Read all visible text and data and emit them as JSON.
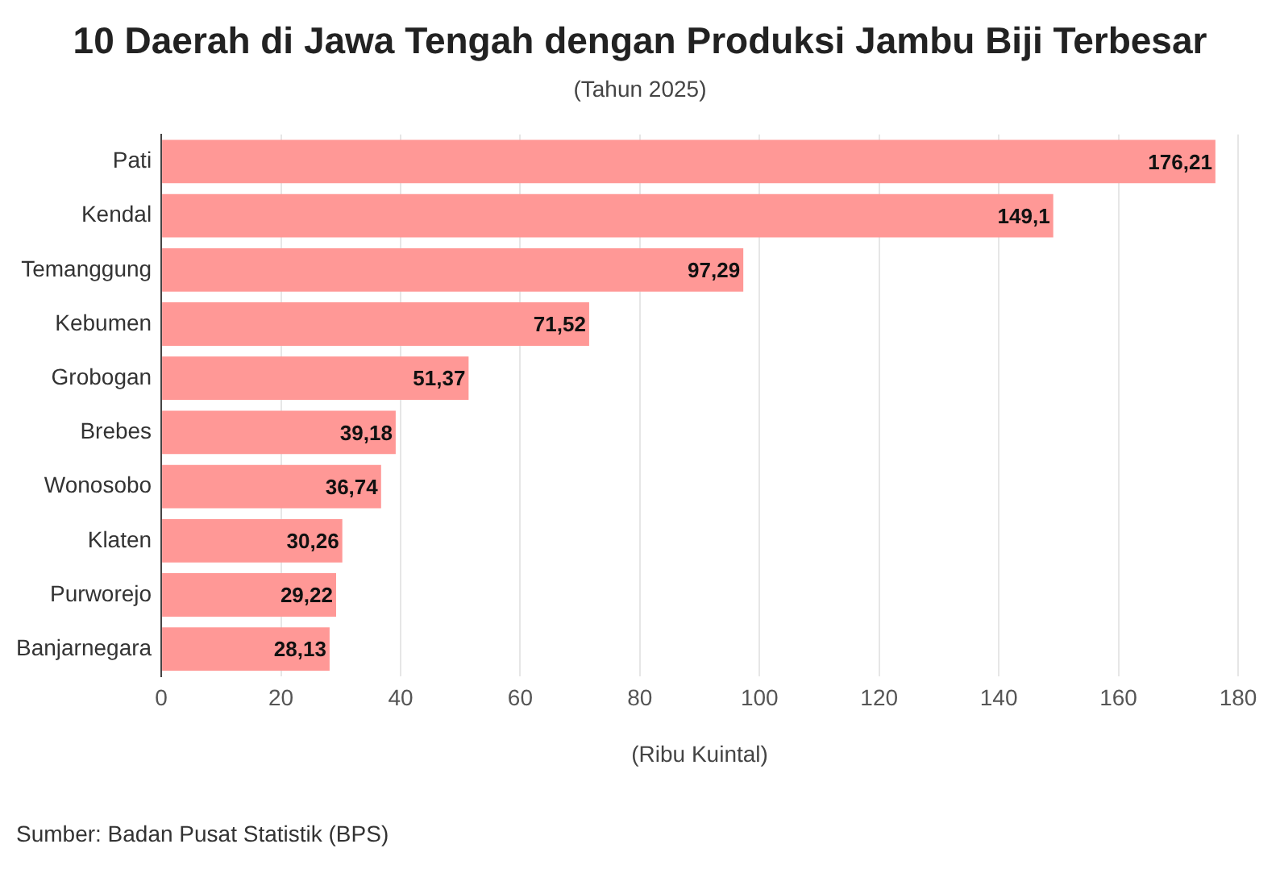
{
  "chart_data": {
    "type": "bar",
    "orientation": "horizontal",
    "title": "10 Daerah di Jawa Tengah dengan Produksi Jambu Biji Terbesar",
    "subtitle": "(Tahun 2025)",
    "xlabel": "(Ribu Kuintal)",
    "categories": [
      "Pati",
      "Kendal",
      "Temanggung",
      "Kebumen",
      "Grobogan",
      "Brebes",
      "Wonosobo",
      "Klaten",
      "Purworejo",
      "Banjarnegara"
    ],
    "values": [
      176.21,
      149.1,
      97.29,
      71.52,
      51.37,
      39.18,
      36.74,
      30.26,
      29.22,
      28.13
    ],
    "value_labels": [
      "176,21",
      "149,1",
      "97,29",
      "71,52",
      "51,37",
      "39,18",
      "36,74",
      "30,26",
      "29,22",
      "28,13"
    ],
    "color": "#ff9896",
    "xlim": [
      0,
      180
    ],
    "xticks": [
      0,
      20,
      40,
      60,
      80,
      100,
      120,
      140,
      160,
      180
    ],
    "grid": "x",
    "legend": false,
    "annotations": [
      "Sumber: Badan Pusat Statistik (BPS)"
    ]
  }
}
